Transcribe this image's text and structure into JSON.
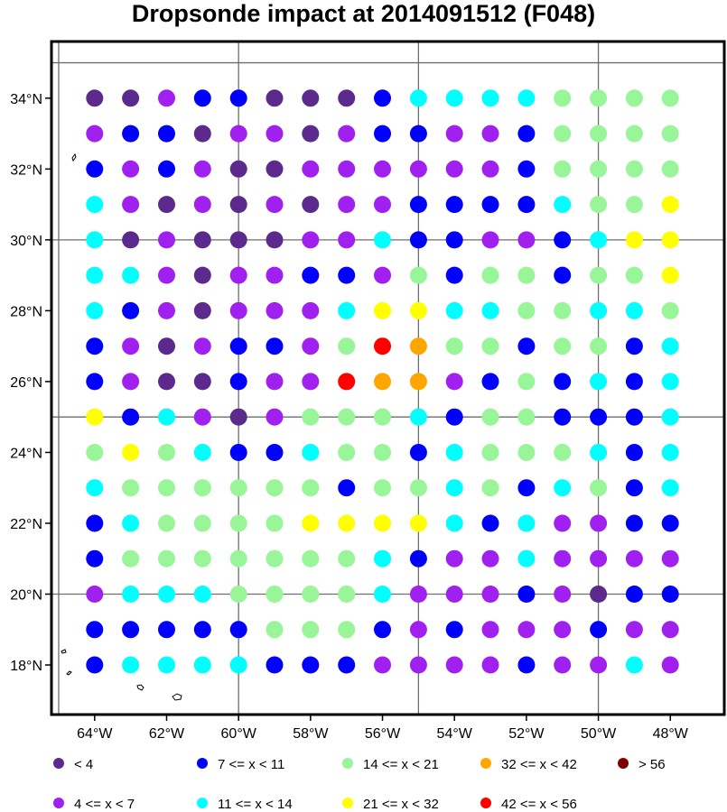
{
  "title": "Dropsonde impact at 2014091512 (F048)",
  "chart_data": {
    "type": "scatter",
    "x_ticks": [
      "64°W",
      "62°W",
      "60°W",
      "58°W",
      "56°W",
      "54°W",
      "52°W",
      "50°W",
      "48°W"
    ],
    "y_ticks": [
      "34°N",
      "32°N",
      "30°N",
      "28°N",
      "26°N",
      "24°N",
      "22°N",
      "20°N",
      "18°N"
    ],
    "x_tick_values": [
      -64,
      -62,
      -60,
      -58,
      -56,
      -54,
      -52,
      -50,
      -48
    ],
    "y_tick_values": [
      34,
      32,
      30,
      28,
      26,
      24,
      22,
      20,
      18
    ],
    "xlim": [
      -65.2,
      -46.5
    ],
    "ylim": [
      16.6,
      35.6
    ],
    "gridlines": {
      "lon": [
        -65,
        -60,
        -55,
        -50
      ],
      "lat": [
        35,
        30,
        25,
        20
      ]
    },
    "lons": [
      -64,
      -63,
      -62,
      -61,
      -60,
      -59,
      -58,
      -57,
      -56,
      -55,
      -54,
      -53,
      -52,
      -51,
      -50,
      -49,
      -48
    ],
    "lats": [
      34,
      33,
      32,
      31,
      30,
      29,
      28,
      27,
      26,
      25,
      24,
      23,
      22,
      21,
      20,
      19,
      18
    ],
    "category_colors": [
      "#5b2a8c",
      "#a020f0",
      "#0000ff",
      "#00ffff",
      "#98f598",
      "#ffff00",
      "#ffa500",
      "#ff0000",
      "#800000"
    ],
    "categories": [
      "<  4",
      "4 <= x <  7",
      "7 <= x < 11",
      "11 <= x < 14",
      "14 <= x < 21",
      "21 <= x < 32",
      "32 <= x < 42",
      "42 <= x < 56",
      "> 56"
    ],
    "grid_classes": [
      [
        0,
        0,
        1,
        2,
        2,
        0,
        0,
        0,
        2,
        3,
        3,
        3,
        3,
        4,
        4,
        4,
        4
      ],
      [
        1,
        2,
        2,
        0,
        1,
        1,
        0,
        1,
        2,
        2,
        1,
        1,
        2,
        4,
        4,
        4,
        4
      ],
      [
        2,
        1,
        2,
        1,
        0,
        0,
        1,
        1,
        1,
        1,
        1,
        1,
        2,
        4,
        4,
        4,
        4
      ],
      [
        3,
        1,
        0,
        1,
        0,
        1,
        0,
        1,
        1,
        2,
        2,
        2,
        2,
        3,
        4,
        4,
        5
      ],
      [
        3,
        0,
        1,
        0,
        0,
        0,
        1,
        1,
        3,
        2,
        2,
        1,
        1,
        2,
        3,
        5,
        5
      ],
      [
        3,
        3,
        1,
        0,
        1,
        1,
        2,
        2,
        1,
        4,
        2,
        4,
        4,
        2,
        4,
        4,
        5
      ],
      [
        3,
        2,
        1,
        0,
        1,
        1,
        1,
        3,
        5,
        5,
        3,
        3,
        4,
        4,
        3,
        3,
        4
      ],
      [
        2,
        1,
        0,
        1,
        2,
        2,
        1,
        4,
        7,
        6,
        4,
        4,
        2,
        4,
        4,
        2,
        3
      ],
      [
        2,
        1,
        0,
        0,
        2,
        1,
        1,
        7,
        6,
        6,
        1,
        2,
        4,
        2,
        3,
        2,
        3
      ],
      [
        5,
        2,
        3,
        1,
        0,
        1,
        4,
        4,
        4,
        3,
        2,
        4,
        4,
        2,
        2,
        2,
        3
      ],
      [
        4,
        5,
        4,
        3,
        2,
        2,
        3,
        4,
        4,
        2,
        3,
        4,
        4,
        4,
        3,
        2,
        3
      ],
      [
        3,
        4,
        4,
        4,
        4,
        4,
        4,
        2,
        4,
        4,
        3,
        4,
        2,
        3,
        4,
        2,
        3
      ],
      [
        2,
        3,
        4,
        4,
        4,
        4,
        5,
        5,
        5,
        5,
        3,
        2,
        3,
        1,
        1,
        2,
        2
      ],
      [
        2,
        4,
        4,
        4,
        4,
        4,
        4,
        4,
        3,
        2,
        1,
        1,
        3,
        1,
        1,
        1,
        1
      ],
      [
        1,
        3,
        3,
        3,
        4,
        4,
        4,
        4,
        3,
        1,
        1,
        1,
        2,
        1,
        0,
        2,
        2
      ],
      [
        2,
        2,
        2,
        2,
        2,
        4,
        4,
        4,
        2,
        1,
        2,
        1,
        1,
        1,
        2,
        1,
        1
      ],
      [
        2,
        3,
        3,
        3,
        3,
        2,
        2,
        2,
        1,
        1,
        1,
        1,
        2,
        1,
        1,
        3,
        1
      ]
    ]
  },
  "legend": {
    "items": [
      {
        "label": "<  4",
        "color": "#5b2a8c"
      },
      {
        "label": "4 <= x <  7",
        "color": "#a020f0"
      },
      {
        "label": "7 <= x < 11",
        "color": "#0000ff"
      },
      {
        "label": "11 <= x < 14",
        "color": "#00ffff"
      },
      {
        "label": "14 <= x < 21",
        "color": "#98f598"
      },
      {
        "label": "21 <= x < 32",
        "color": "#ffff00"
      },
      {
        "label": "32 <= x < 42",
        "color": "#ffa500"
      },
      {
        "label": "42 <= x < 56",
        "color": "#ff0000"
      },
      {
        "label": "> 56",
        "color": "#800000"
      }
    ]
  }
}
